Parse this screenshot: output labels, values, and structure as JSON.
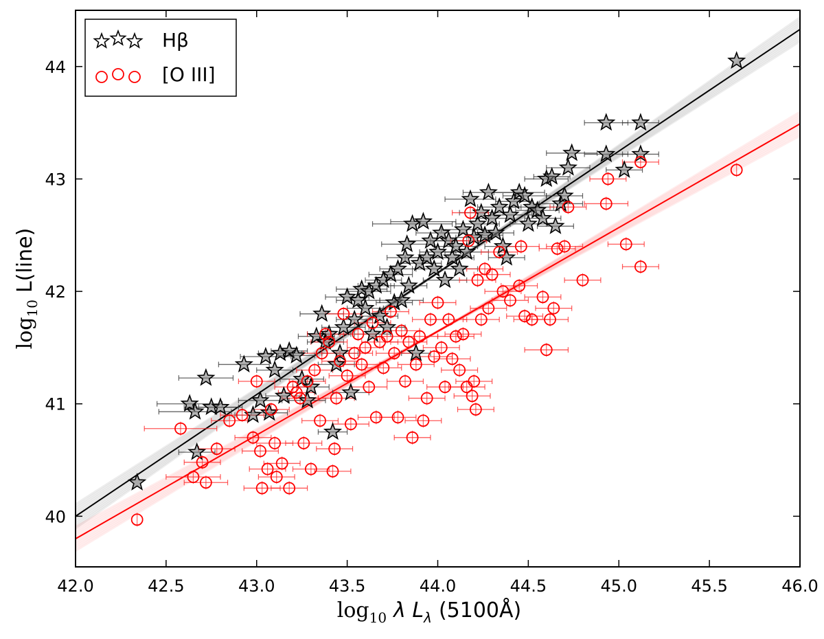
{
  "chart_data": {
    "type": "scatter",
    "xlabel_prefix": "log",
    "xlabel_sub": "10",
    "xlabel_symbol": "λ L",
    "xlabel_symbol_sub": "λ",
    "xlabel_suffix": "(5100Å)",
    "ylabel_prefix": "log",
    "ylabel_sub": "10",
    "ylabel_suffix": "L(line)",
    "xlim": [
      42.0,
      46.0
    ],
    "ylim": [
      39.55,
      44.5
    ],
    "xticks": [
      42.0,
      42.5,
      43.0,
      43.5,
      44.0,
      44.5,
      45.0,
      45.5,
      46.0
    ],
    "xtick_labels": [
      "42.0",
      "42.5",
      "43.0",
      "43.5",
      "44.0",
      "44.5",
      "45.0",
      "45.5",
      "46.0"
    ],
    "yticks": [
      40,
      41,
      42,
      43,
      44
    ],
    "ytick_labels": [
      "40",
      "41",
      "42",
      "43",
      "44"
    ],
    "grid": false,
    "legend": {
      "position": "top-left",
      "entries": [
        {
          "label": "Hβ",
          "marker": "star",
          "color": "#000000"
        },
        {
          "label": "[O III]",
          "marker": "circle",
          "color": "#ff0000"
        }
      ]
    },
    "fits": [
      {
        "name": "Hβ fit",
        "color": "#000000",
        "x": [
          42.0,
          46.0
        ],
        "y": [
          40.0,
          44.33
        ]
      },
      {
        "name": "[O III] fit",
        "color": "#ff0000",
        "x": [
          42.0,
          46.0
        ],
        "y": [
          39.8,
          43.49
        ]
      }
    ],
    "series": [
      {
        "name": "Hβ",
        "marker": "star",
        "color": "#000000",
        "points": [
          [
            42.34,
            40.3,
            0
          ],
          [
            42.63,
            41.0,
            0.18
          ],
          [
            42.66,
            40.93,
            0.2
          ],
          [
            42.67,
            40.57,
            0.1
          ],
          [
            42.72,
            41.23,
            0.15
          ],
          [
            42.75,
            40.97,
            0.15
          ],
          [
            42.8,
            40.97,
            0.12
          ],
          [
            42.93,
            41.35,
            0.14
          ],
          [
            42.98,
            40.9,
            0.1
          ],
          [
            43.02,
            41.03,
            0.12
          ],
          [
            43.05,
            41.42,
            0.14
          ],
          [
            43.07,
            40.92,
            0.1
          ],
          [
            43.1,
            41.3,
            0.1
          ],
          [
            43.13,
            41.45,
            0.12
          ],
          [
            43.15,
            41.07,
            0.1
          ],
          [
            43.18,
            41.47,
            0.1
          ],
          [
            43.22,
            41.43,
            0.1
          ],
          [
            43.25,
            41.22,
            0.12
          ],
          [
            43.28,
            41.03,
            0.1
          ],
          [
            43.3,
            41.15,
            0.1
          ],
          [
            43.33,
            41.6,
            0.1
          ],
          [
            43.36,
            41.8,
            0.12
          ],
          [
            43.38,
            41.55,
            0.1
          ],
          [
            43.4,
            41.62,
            0.12
          ],
          [
            43.42,
            40.75,
            0.08
          ],
          [
            43.44,
            41.35,
            0.1
          ],
          [
            43.46,
            41.45,
            0.1
          ],
          [
            43.48,
            41.68,
            0.12
          ],
          [
            43.5,
            41.95,
            0.12
          ],
          [
            43.52,
            41.1,
            0.1
          ],
          [
            43.54,
            41.75,
            0.1
          ],
          [
            43.56,
            41.92,
            0.12
          ],
          [
            43.58,
            42.02,
            0.14
          ],
          [
            43.6,
            41.85,
            0.1
          ],
          [
            43.62,
            42.0,
            0.12
          ],
          [
            43.64,
            41.62,
            0.1
          ],
          [
            43.66,
            42.05,
            0.1
          ],
          [
            43.68,
            41.78,
            0.1
          ],
          [
            43.7,
            42.1,
            0.1
          ],
          [
            43.72,
            41.68,
            0.1
          ],
          [
            43.74,
            42.15,
            0.12
          ],
          [
            43.76,
            41.9,
            0.1
          ],
          [
            43.78,
            42.2,
            0.1
          ],
          [
            43.8,
            41.92,
            0.12
          ],
          [
            43.82,
            42.3,
            0.1
          ],
          [
            43.83,
            42.42,
            0.14
          ],
          [
            43.84,
            42.05,
            0.1
          ],
          [
            43.86,
            42.6,
            0.22
          ],
          [
            43.88,
            41.45,
            0.08
          ],
          [
            43.9,
            42.25,
            0.12
          ],
          [
            43.92,
            42.62,
            0.18
          ],
          [
            43.94,
            42.3,
            0.12
          ],
          [
            43.96,
            42.45,
            0.12
          ],
          [
            43.98,
            42.2,
            0.12
          ],
          [
            44.0,
            42.35,
            0.1
          ],
          [
            44.02,
            42.52,
            0.14
          ],
          [
            44.04,
            42.1,
            0.12
          ],
          [
            44.06,
            42.45,
            0.1
          ],
          [
            44.08,
            42.3,
            0.12
          ],
          [
            44.1,
            42.4,
            0.12
          ],
          [
            44.12,
            42.2,
            0.1
          ],
          [
            44.14,
            42.55,
            0.12
          ],
          [
            44.16,
            42.35,
            0.12
          ],
          [
            44.18,
            42.82,
            0.14
          ],
          [
            44.2,
            42.48,
            0.1
          ],
          [
            44.22,
            42.6,
            0.12
          ],
          [
            44.24,
            42.7,
            0.12
          ],
          [
            44.26,
            42.5,
            0.1
          ],
          [
            44.28,
            42.88,
            0.14
          ],
          [
            44.3,
            42.65,
            0.12
          ],
          [
            44.32,
            42.52,
            0.1
          ],
          [
            44.34,
            42.75,
            0.12
          ],
          [
            44.36,
            42.4,
            0.1
          ],
          [
            44.38,
            42.3,
            0.1
          ],
          [
            44.4,
            42.68,
            0.12
          ],
          [
            44.42,
            42.8,
            0.1
          ],
          [
            44.45,
            42.88,
            0.14
          ],
          [
            44.48,
            42.85,
            0.12
          ],
          [
            44.5,
            42.6,
            0.1
          ],
          [
            44.52,
            42.75,
            0.12
          ],
          [
            44.55,
            42.72,
            0.12
          ],
          [
            44.58,
            42.65,
            0.1
          ],
          [
            44.6,
            43.0,
            0.12
          ],
          [
            44.63,
            43.02,
            0.1
          ],
          [
            44.65,
            42.58,
            0.1
          ],
          [
            44.68,
            42.78,
            0.12
          ],
          [
            44.7,
            42.85,
            0.1
          ],
          [
            44.72,
            43.1,
            0.12
          ],
          [
            44.74,
            43.23,
            0.14
          ],
          [
            44.93,
            43.5,
            0.12
          ],
          [
            44.93,
            43.22,
            0.12
          ],
          [
            45.03,
            43.08,
            0.1
          ],
          [
            45.12,
            43.5,
            0.1
          ],
          [
            45.12,
            43.22,
            0.1
          ],
          [
            45.65,
            44.05,
            0
          ]
        ]
      },
      {
        "name": "[O III]",
        "marker": "circle",
        "color": "#ff0000",
        "points": [
          [
            42.34,
            39.97,
            0
          ],
          [
            42.58,
            40.78,
            0.2
          ],
          [
            42.65,
            40.35,
            0.15
          ],
          [
            42.7,
            40.48,
            0.1
          ],
          [
            42.72,
            40.3,
            0.12
          ],
          [
            42.78,
            40.6,
            0.1
          ],
          [
            42.85,
            40.85,
            0.1
          ],
          [
            42.92,
            40.9,
            0.12
          ],
          [
            42.98,
            40.7,
            0.1
          ],
          [
            43.0,
            41.2,
            0.1
          ],
          [
            43.02,
            40.58,
            0.1
          ],
          [
            43.03,
            40.25,
            0.1
          ],
          [
            43.06,
            40.42,
            0.1
          ],
          [
            43.08,
            40.95,
            0.1
          ],
          [
            43.1,
            40.65,
            0.1
          ],
          [
            43.11,
            40.35,
            0.1
          ],
          [
            43.14,
            40.47,
            0.1
          ],
          [
            43.18,
            40.25,
            0.1
          ],
          [
            43.2,
            41.15,
            0.1
          ],
          [
            43.22,
            41.1,
            0.1
          ],
          [
            43.24,
            41.05,
            0.1
          ],
          [
            43.26,
            40.65,
            0.1
          ],
          [
            43.28,
            41.2,
            0.1
          ],
          [
            43.3,
            40.42,
            0.1
          ],
          [
            43.32,
            41.3,
            0.1
          ],
          [
            43.35,
            40.85,
            0.1
          ],
          [
            43.36,
            41.45,
            0.1
          ],
          [
            43.38,
            41.62,
            0.1
          ],
          [
            43.4,
            41.55,
            0.1
          ],
          [
            43.42,
            40.4,
            0.1
          ],
          [
            43.43,
            40.6,
            0.1
          ],
          [
            43.44,
            41.05,
            0.1
          ],
          [
            43.46,
            41.38,
            0.1
          ],
          [
            43.48,
            41.8,
            0.1
          ],
          [
            43.5,
            41.25,
            0.1
          ],
          [
            43.52,
            40.82,
            0.1
          ],
          [
            43.54,
            41.45,
            0.1
          ],
          [
            43.56,
            41.62,
            0.1
          ],
          [
            43.58,
            41.35,
            0.1
          ],
          [
            43.6,
            41.5,
            0.1
          ],
          [
            43.62,
            41.15,
            0.1
          ],
          [
            43.64,
            41.72,
            0.1
          ],
          [
            43.66,
            40.88,
            0.1
          ],
          [
            43.68,
            41.55,
            0.1
          ],
          [
            43.7,
            41.32,
            0.1
          ],
          [
            43.72,
            41.6,
            0.1
          ],
          [
            43.74,
            41.82,
            0.1
          ],
          [
            43.76,
            41.45,
            0.1
          ],
          [
            43.78,
            40.88,
            0.1
          ],
          [
            43.8,
            41.65,
            0.1
          ],
          [
            43.82,
            41.2,
            0.1
          ],
          [
            43.84,
            41.55,
            0.1
          ],
          [
            43.86,
            40.7,
            0.1
          ],
          [
            43.88,
            41.35,
            0.1
          ],
          [
            43.9,
            41.6,
            0.1
          ],
          [
            43.92,
            40.85,
            0.1
          ],
          [
            43.94,
            41.05,
            0.1
          ],
          [
            43.96,
            41.75,
            0.1
          ],
          [
            43.98,
            41.42,
            0.1
          ],
          [
            44.0,
            41.9,
            0.1
          ],
          [
            44.02,
            41.5,
            0.1
          ],
          [
            44.04,
            41.15,
            0.1
          ],
          [
            44.06,
            41.75,
            0.1
          ],
          [
            44.08,
            41.4,
            0.1
          ],
          [
            44.1,
            41.6,
            0.1
          ],
          [
            44.12,
            41.3,
            0.1
          ],
          [
            44.14,
            41.62,
            0.1
          ],
          [
            44.16,
            41.15,
            0.1
          ],
          [
            44.17,
            42.45,
            0.1
          ],
          [
            44.18,
            42.7,
            0.1
          ],
          [
            44.19,
            41.07,
            0.1
          ],
          [
            44.2,
            41.2,
            0.1
          ],
          [
            44.21,
            40.95,
            0.1
          ],
          [
            44.22,
            42.1,
            0.1
          ],
          [
            44.24,
            41.75,
            0.1
          ],
          [
            44.26,
            42.2,
            0.1
          ],
          [
            44.28,
            41.85,
            0.1
          ],
          [
            44.3,
            42.15,
            0.1
          ],
          [
            44.34,
            42.35,
            0.1
          ],
          [
            44.36,
            42.0,
            0.1
          ],
          [
            44.4,
            41.92,
            0.1
          ],
          [
            44.45,
            42.05,
            0.1
          ],
          [
            44.46,
            42.4,
            0.1
          ],
          [
            44.48,
            41.78,
            0.1
          ],
          [
            44.52,
            41.75,
            0.1
          ],
          [
            44.58,
            41.95,
            0.1
          ],
          [
            44.6,
            41.48,
            0.12
          ],
          [
            44.62,
            41.75,
            0.1
          ],
          [
            44.64,
            41.85,
            0.1
          ],
          [
            44.66,
            42.38,
            0.1
          ],
          [
            44.7,
            42.4,
            0.1
          ],
          [
            44.72,
            42.75,
            0.1
          ],
          [
            44.8,
            42.1,
            0.1
          ],
          [
            44.93,
            42.78,
            0.12
          ],
          [
            44.94,
            43.0,
            0.1
          ],
          [
            45.04,
            42.42,
            0.1
          ],
          [
            45.12,
            43.15,
            0.1
          ],
          [
            45.12,
            42.22,
            0.1
          ],
          [
            45.65,
            43.08,
            0
          ]
        ]
      }
    ]
  }
}
